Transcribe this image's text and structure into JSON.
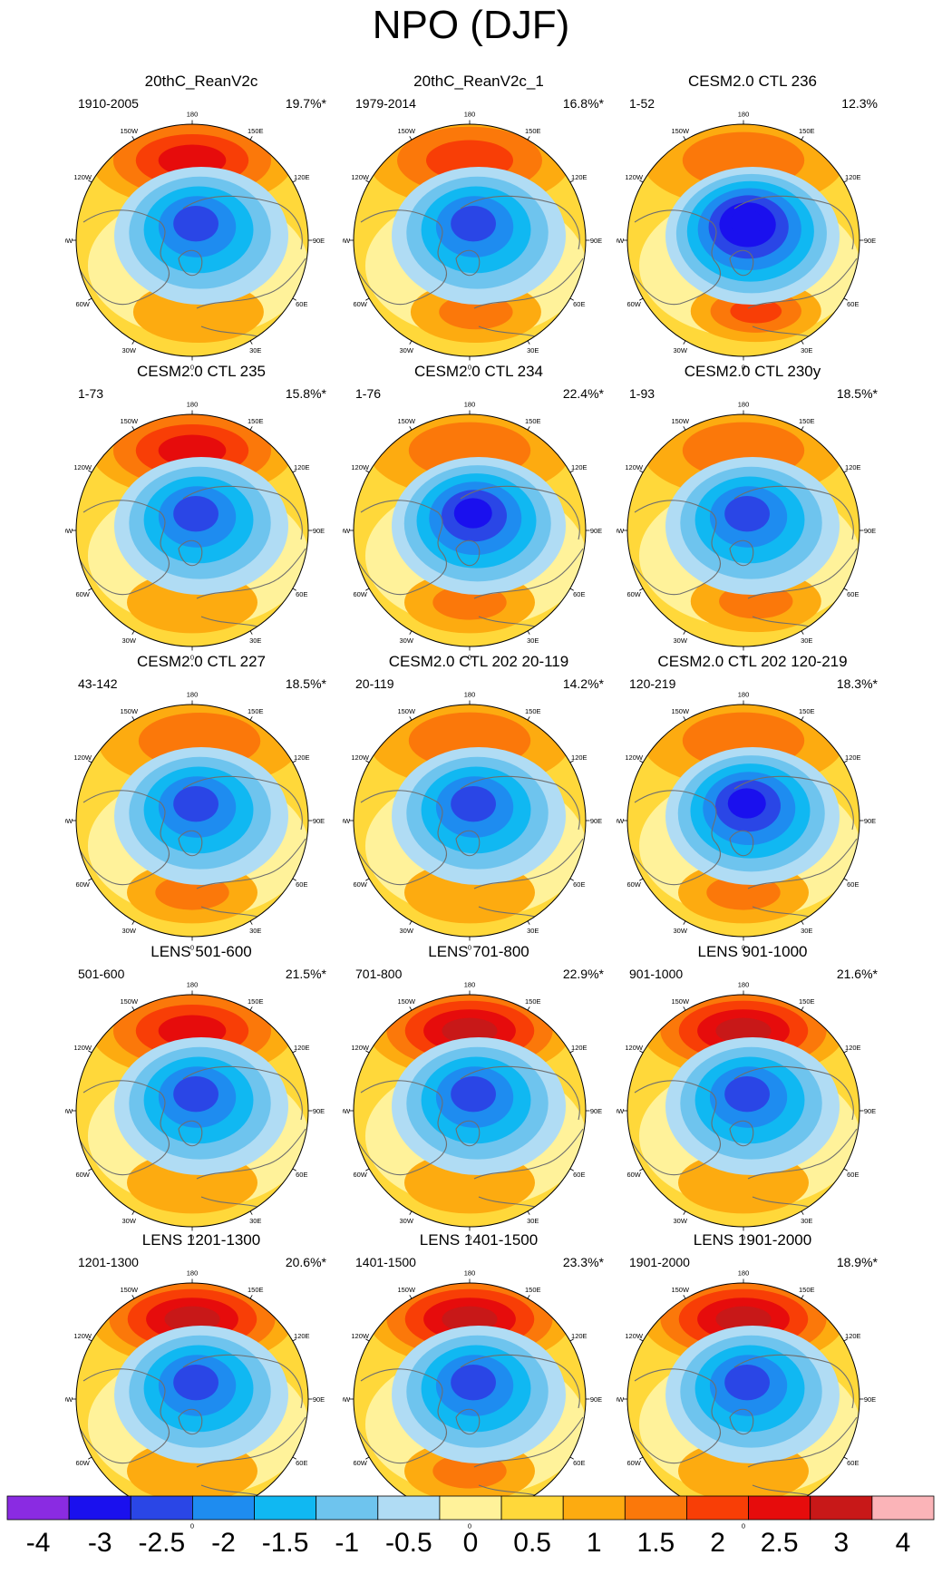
{
  "title": "NPO (DJF)",
  "chart_data": {
    "type": "heatmap",
    "projection": "north-polar-stereographic",
    "variable": "NPO (DJF)",
    "longitude_labels": [
      "180",
      "150E",
      "120E",
      "90E",
      "60E",
      "30E",
      "0",
      "30W",
      "60W",
      "90W",
      "120W",
      "150W"
    ],
    "colorbar": {
      "levels": [
        "-4",
        "-3",
        "-2.5",
        "-2",
        "-1.5",
        "-1",
        "-0.5",
        "0",
        "0.5",
        "1",
        "1.5",
        "2",
        "2.5",
        "3",
        "4"
      ],
      "colors": [
        "#8a2be2",
        "#1a10ee",
        "#2a46e6",
        "#1e8cf0",
        "#10b8f2",
        "#6ec4ee",
        "#b0dcf4",
        "#fff29a",
        "#ffd83a",
        "#fdab10",
        "#fb780a",
        "#f83e06",
        "#e60c0c",
        "#c81818",
        "#fbb4b8"
      ]
    },
    "panels": [
      {
        "title": "20thC_ReanV2c",
        "period": "1910-2005",
        "variance": "19.7%*",
        "pac_max": 2.5,
        "pac_lon": 180,
        "arc_min": -3,
        "atl_max": 1,
        "atl_lon": 5
      },
      {
        "title": "20thC_ReanV2c_1",
        "period": "1979-2014",
        "variance": "16.8%*",
        "pac_max": 2,
        "pac_lon": 180,
        "arc_min": -3,
        "atl_max": 1.5,
        "atl_lon": 5
      },
      {
        "title": "CESM2.0 CTL 236",
        "period": "1-52",
        "variance": "12.3%",
        "pac_max": 1.5,
        "pac_lon": 180,
        "arc_min": -4,
        "atl_max": 2,
        "atl_lon": 10
      },
      {
        "title": "CESM2.0 CTL 235",
        "period": "1-73",
        "variance": "15.8%*",
        "pac_max": 2.5,
        "pac_lon": 180,
        "arc_min": -3,
        "atl_max": 1,
        "atl_lon": 0
      },
      {
        "title": "CESM2.0 CTL 234",
        "period": "1-76",
        "variance": "22.4%*",
        "pac_max": 1.5,
        "pac_lon": 180,
        "arc_min": -3.5,
        "atl_max": 1.5,
        "atl_lon": 0
      },
      {
        "title": "CESM2.0 CTL 230y",
        "period": "1-93",
        "variance": "18.5%*",
        "pac_max": 1.5,
        "pac_lon": 180,
        "arc_min": -3,
        "atl_max": 1.5,
        "atl_lon": 10
      },
      {
        "title": "CESM2.0 CTL 227",
        "period": "43-142",
        "variance": "18.5%*",
        "pac_max": 1.5,
        "pac_lon": 175,
        "arc_min": -3,
        "atl_max": 1.5,
        "atl_lon": 0
      },
      {
        "title": "CESM2.0 CTL 202 20-119",
        "period": "20-119",
        "variance": "14.2%*",
        "pac_max": 1.5,
        "pac_lon": 180,
        "arc_min": -3,
        "atl_max": 1,
        "atl_lon": 0
      },
      {
        "title": "CESM2.0 CTL 202 120-219",
        "period": "120-219",
        "variance": "18.3%*",
        "pac_max": 1.5,
        "pac_lon": 180,
        "arc_min": -3.5,
        "atl_max": 1.5,
        "atl_lon": 0
      },
      {
        "title": "LENS 501-600",
        "period": "501-600",
        "variance": "21.5%*",
        "pac_max": 2.5,
        "pac_lon": 180,
        "arc_min": -3,
        "atl_max": 1,
        "atl_lon": 0
      },
      {
        "title": "LENS 701-800",
        "period": "701-800",
        "variance": "22.9%*",
        "pac_max": 3,
        "pac_lon": 180,
        "arc_min": -3,
        "atl_max": 1,
        "atl_lon": 0
      },
      {
        "title": "LENS 901-1000",
        "period": "901-1000",
        "variance": "21.6%*",
        "pac_max": 3,
        "pac_lon": 180,
        "arc_min": -3,
        "atl_max": 1,
        "atl_lon": 0
      },
      {
        "title": "LENS 1201-1300",
        "period": "1201-1300",
        "variance": "20.6%*",
        "pac_max": 3,
        "pac_lon": 180,
        "arc_min": -3,
        "atl_max": 1,
        "atl_lon": 0
      },
      {
        "title": "LENS 1401-1500",
        "period": "1401-1500",
        "variance": "23.3%*",
        "pac_max": 3,
        "pac_lon": 180,
        "arc_min": -3,
        "atl_max": 1.5,
        "atl_lon": 0
      },
      {
        "title": "LENS 1901-2000",
        "period": "1901-2000",
        "variance": "18.9%*",
        "pac_max": 3,
        "pac_lon": 180,
        "arc_min": -3,
        "atl_max": 1,
        "atl_lon": 0
      }
    ]
  }
}
